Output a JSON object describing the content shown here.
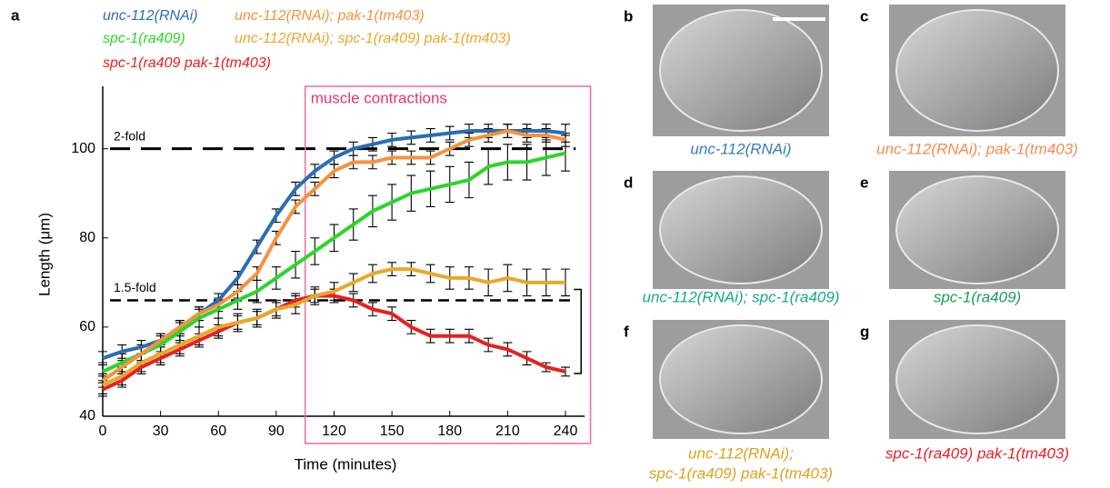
{
  "chart_data": {
    "type": "line",
    "x_label": "Time (minutes)",
    "y_label": "Length (μm)",
    "panel_letter": "a",
    "xlim": [
      0,
      250
    ],
    "ylim": [
      40,
      114
    ],
    "xticks": [
      0,
      30,
      60,
      90,
      120,
      150,
      180,
      210,
      240
    ],
    "yticks": [
      40,
      60,
      80,
      100
    ],
    "x": [
      0,
      10,
      20,
      30,
      40,
      50,
      60,
      70,
      80,
      90,
      100,
      110,
      120,
      130,
      140,
      150,
      160,
      170,
      180,
      190,
      200,
      210,
      220,
      230,
      240
    ],
    "series": [
      {
        "name": "unc-112(RNAi)",
        "color": "#2a6db3",
        "values": [
          53,
          54.5,
          55.5,
          57,
          60,
          63,
          66,
          71,
          78,
          85,
          91,
          95,
          98,
          100,
          101,
          102,
          102.5,
          103,
          103.5,
          104,
          104,
          104,
          104,
          104,
          103.5
        ],
        "errors": [
          1.5,
          1.5,
          1.5,
          1.5,
          1.5,
          1.5,
          1.5,
          1.5,
          1.5,
          1.5,
          1.5,
          1.5,
          1.5,
          1.5,
          1.5,
          1.5,
          1.5,
          1.5,
          1.5,
          1.5,
          1.5,
          1.5,
          1.5,
          1.5,
          2
        ]
      },
      {
        "name": "spc-1(ra409)",
        "color": "#2bd52b",
        "values": [
          50,
          52,
          54,
          56,
          59,
          62,
          64,
          66,
          68,
          71,
          74,
          77,
          80,
          83,
          86,
          88,
          90,
          91,
          92,
          93,
          96,
          97,
          97,
          98,
          99
        ],
        "errors": [
          2,
          2,
          2,
          2,
          2,
          2,
          2,
          2,
          2.5,
          2.5,
          3,
          3,
          3,
          3.5,
          3.5,
          4,
          4,
          4,
          4,
          4,
          4,
          4,
          4,
          4,
          4
        ]
      },
      {
        "name": "spc-1(ra409 pak-1(tm403)",
        "color": "#e8201e",
        "values": [
          46,
          48,
          51,
          53,
          55,
          57,
          59,
          61,
          62,
          64,
          66,
          67,
          67,
          66,
          64,
          63,
          60,
          58,
          58,
          58,
          56,
          55,
          53,
          51,
          50
        ],
        "errors": [
          1.5,
          1.5,
          1.5,
          1.5,
          1.5,
          1.5,
          1.5,
          1.5,
          1.5,
          1.5,
          1.5,
          1.5,
          1.5,
          1.5,
          1.5,
          1.5,
          1.5,
          1.5,
          1.5,
          1.5,
          1.5,
          1.5,
          1.5,
          1,
          1
        ]
      },
      {
        "name": "unc-112(RNAi); pak-1(tm403)",
        "color": "#f5923e",
        "values": [
          48,
          51,
          54,
          57,
          60,
          63,
          65,
          68,
          72,
          80,
          87,
          91,
          95,
          97,
          97,
          98,
          98,
          98,
          100,
          102,
          103,
          104,
          103,
          103,
          102
        ],
        "errors": [
          1.5,
          1.5,
          1.5,
          1.5,
          1.5,
          1.5,
          1.5,
          1.5,
          1.5,
          1.5,
          1.5,
          1.5,
          1.5,
          1.5,
          1.5,
          1.5,
          1.5,
          1.5,
          1.5,
          1.5,
          1.5,
          1.5,
          1.5,
          1.5,
          1.5
        ]
      },
      {
        "name": "unc-112(RNAi); spc-1(ra409) pak-1(tm403)",
        "color": "#e8a82a",
        "values": [
          47,
          49,
          52,
          54,
          56,
          58,
          60,
          61,
          62,
          64,
          65,
          67,
          68,
          70,
          72,
          73,
          73,
          72,
          71,
          71,
          70,
          71,
          70,
          70,
          70
        ],
        "errors": [
          2,
          2,
          2,
          2,
          2,
          2,
          2,
          2,
          2,
          2,
          2,
          2,
          2,
          2,
          2,
          1.5,
          1.5,
          2,
          2.5,
          2.5,
          3,
          3,
          3,
          3,
          3
        ]
      }
    ],
    "reference_lines": [
      {
        "value": 100,
        "label": "2-fold"
      },
      {
        "value": 66,
        "label": "1.5-fold"
      }
    ],
    "annotation": {
      "label": "muscle contractions",
      "x": [
        105,
        253
      ]
    }
  },
  "panels": [
    {
      "letter": "b",
      "caption": [
        "unc-112(RNAi)"
      ],
      "color": "#2f7ec1"
    },
    {
      "letter": "c",
      "caption": [
        "unc-112(RNAi); pak-1(tm403)"
      ],
      "color": "#f28d4e"
    },
    {
      "letter": "d",
      "caption": [
        "unc-112(RNAi); spc-1(ra409)"
      ],
      "color": "#1aa88a"
    },
    {
      "letter": "e",
      "caption": [
        "spc-1(ra409)"
      ],
      "color": "#1aa055"
    },
    {
      "letter": "f",
      "caption": [
        "unc-112(RNAi);",
        "spc-1(ra409) pak-1(tm403)"
      ],
      "color": "#e0a020"
    },
    {
      "letter": "g",
      "caption": [
        "spc-1(ra409) pak-1(tm403)"
      ],
      "color": "#e8202a"
    }
  ]
}
